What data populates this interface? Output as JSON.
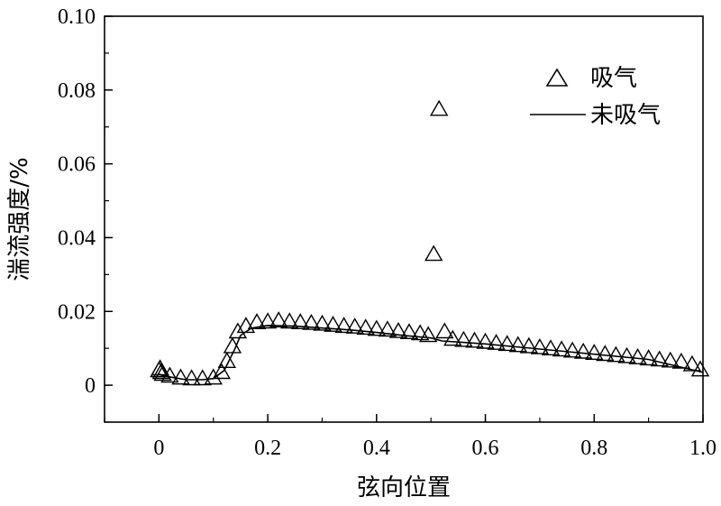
{
  "chart_data": {
    "type": "scatter",
    "xlabel": "弦向位置",
    "ylabel": "湍流强度/%",
    "xlim": [
      -0.1,
      1.0
    ],
    "ylim": [
      -0.01,
      0.1
    ],
    "x_ticks": [
      0,
      0.2,
      0.4,
      0.6,
      0.8,
      1.0
    ],
    "x_tick_labels": [
      "0",
      "0.2",
      "0.4",
      "0.6",
      "0.8",
      "1.0"
    ],
    "y_ticks": [
      0,
      0.02,
      0.04,
      0.06,
      0.08,
      0.1
    ],
    "y_tick_labels": [
      "0",
      "0.02",
      "0.04",
      "0.06",
      "0.08",
      "0.10"
    ],
    "grid": false,
    "legend_position": "top-right",
    "series": [
      {
        "name": "吸气",
        "marker": "triangle",
        "points": [
          [
            0.0,
            0.004
          ],
          [
            0.002,
            0.0045
          ],
          [
            0.004,
            0.0035
          ],
          [
            0.007,
            0.003
          ],
          [
            0.02,
            0.0025
          ],
          [
            0.04,
            0.002
          ],
          [
            0.06,
            0.0018
          ],
          [
            0.08,
            0.0018
          ],
          [
            0.1,
            0.002
          ],
          [
            0.115,
            0.0035
          ],
          [
            0.125,
            0.0065
          ],
          [
            0.135,
            0.0105
          ],
          [
            0.145,
            0.0145
          ],
          [
            0.16,
            0.016
          ],
          [
            0.18,
            0.017
          ],
          [
            0.2,
            0.0172
          ],
          [
            0.22,
            0.0175
          ],
          [
            0.24,
            0.0172
          ],
          [
            0.26,
            0.017
          ],
          [
            0.28,
            0.0168
          ],
          [
            0.3,
            0.0166
          ],
          [
            0.32,
            0.0163
          ],
          [
            0.34,
            0.016
          ],
          [
            0.36,
            0.0158
          ],
          [
            0.38,
            0.0155
          ],
          [
            0.4,
            0.0152
          ],
          [
            0.42,
            0.015
          ],
          [
            0.44,
            0.0146
          ],
          [
            0.46,
            0.0143
          ],
          [
            0.48,
            0.014
          ],
          [
            0.495,
            0.0135
          ],
          [
            0.505,
            0.0355
          ],
          [
            0.515,
            0.0748
          ],
          [
            0.525,
            0.0145
          ],
          [
            0.54,
            0.0125
          ],
          [
            0.56,
            0.0122
          ],
          [
            0.58,
            0.012
          ],
          [
            0.6,
            0.0117
          ],
          [
            0.62,
            0.0114
          ],
          [
            0.64,
            0.0111
          ],
          [
            0.66,
            0.0108
          ],
          [
            0.68,
            0.0105
          ],
          [
            0.7,
            0.0102
          ],
          [
            0.72,
            0.0099
          ],
          [
            0.74,
            0.0096
          ],
          [
            0.76,
            0.0093
          ],
          [
            0.78,
            0.009
          ],
          [
            0.8,
            0.0087
          ],
          [
            0.82,
            0.0084
          ],
          [
            0.84,
            0.0081
          ],
          [
            0.86,
            0.0078
          ],
          [
            0.88,
            0.0075
          ],
          [
            0.9,
            0.0072
          ],
          [
            0.92,
            0.0069
          ],
          [
            0.94,
            0.0066
          ],
          [
            0.96,
            0.0063
          ],
          [
            0.98,
            0.0056
          ],
          [
            0.995,
            0.0042
          ]
        ]
      },
      {
        "name": "未吸气",
        "marker": "line",
        "points": [
          [
            0.0,
            0.003
          ],
          [
            0.01,
            0.0025
          ],
          [
            0.03,
            0.002
          ],
          [
            0.05,
            0.0015
          ],
          [
            0.08,
            0.0015
          ],
          [
            0.1,
            0.0018
          ],
          [
            0.12,
            0.004
          ],
          [
            0.14,
            0.01
          ],
          [
            0.15,
            0.0135
          ],
          [
            0.17,
            0.0155
          ],
          [
            0.2,
            0.0162
          ],
          [
            0.25,
            0.016
          ],
          [
            0.3,
            0.0155
          ],
          [
            0.35,
            0.015
          ],
          [
            0.4,
            0.0143
          ],
          [
            0.45,
            0.0135
          ],
          [
            0.5,
            0.0128
          ],
          [
            0.52,
            0.012
          ],
          [
            0.55,
            0.0117
          ],
          [
            0.6,
            0.0112
          ],
          [
            0.7,
            0.0098
          ],
          [
            0.8,
            0.0084
          ],
          [
            0.9,
            0.007
          ],
          [
            1.0,
            0.0035
          ]
        ]
      }
    ]
  }
}
